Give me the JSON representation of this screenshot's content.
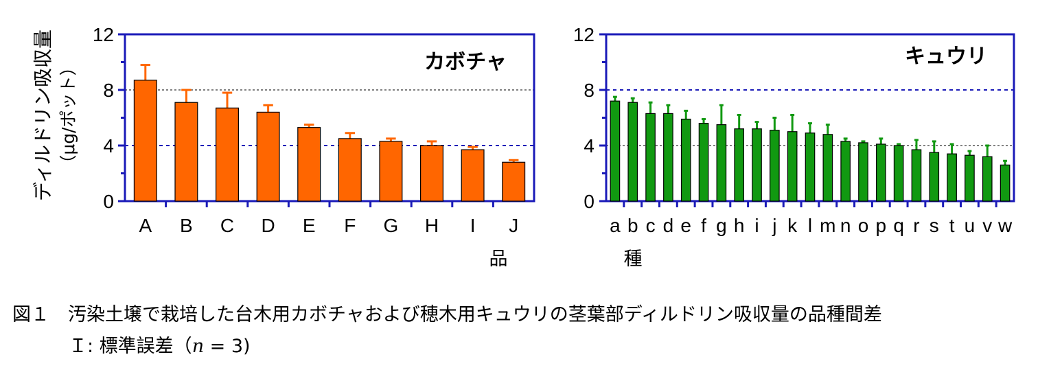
{
  "y_axis_label": "ディルドリン吸収量",
  "y_axis_unit": "（μg/ポット）",
  "x_axis_label_part1": "品",
  "x_axis_label_part2": "種",
  "caption": {
    "line1": "図１　汚染土壌で栽培した台木用カボチャおよび穂木用キュウリの茎葉部ディルドリン吸収量の品種間差",
    "line2_prefix": "Ｉ: 標準誤差（",
    "line2_n": "n",
    "line2_suffix": " = 3)"
  },
  "colors": {
    "axis": "#1a1ab8",
    "refline": "#1a1ab8",
    "pumpkin": "#ff6600",
    "cucumber": "#119911"
  },
  "chart_data": [
    {
      "type": "bar",
      "title": "カボチャ",
      "categories": [
        "A",
        "B",
        "C",
        "D",
        "E",
        "F",
        "G",
        "H",
        "I",
        "J"
      ],
      "values": [
        8.7,
        7.1,
        6.7,
        6.4,
        5.3,
        4.5,
        4.3,
        4.0,
        3.7,
        2.8
      ],
      "errors": [
        1.1,
        0.9,
        1.1,
        0.5,
        0.2,
        0.4,
        0.2,
        0.3,
        0.2,
        0.15
      ],
      "yticks": [
        0,
        4,
        8,
        12
      ],
      "ylim": [
        0,
        12
      ],
      "reference_lines": [
        4,
        8
      ],
      "grid": false
    },
    {
      "type": "bar",
      "title": "キュウリ",
      "categories": [
        "a",
        "b",
        "c",
        "d",
        "e",
        "f",
        "g",
        "h",
        "i",
        "j",
        "k",
        "l",
        "m",
        "n",
        "o",
        "p",
        "q",
        "r",
        "s",
        "t",
        "u",
        "v",
        "w"
      ],
      "values": [
        7.2,
        7.1,
        6.3,
        6.3,
        5.9,
        5.6,
        5.5,
        5.2,
        5.2,
        5.1,
        5.0,
        4.9,
        4.8,
        4.3,
        4.2,
        4.1,
        4.0,
        3.7,
        3.5,
        3.4,
        3.3,
        3.2,
        2.6
      ],
      "errors": [
        0.3,
        0.3,
        0.8,
        0.6,
        0.6,
        0.3,
        1.4,
        1.0,
        0.5,
        0.9,
        1.2,
        0.7,
        0.7,
        0.2,
        0.1,
        0.4,
        0.1,
        0.7,
        0.8,
        0.7,
        0.3,
        0.8,
        0.3
      ],
      "yticks": [
        0,
        4,
        8,
        12
      ],
      "ylim": [
        0,
        12
      ],
      "reference_lines": [
        4,
        8
      ],
      "grid": false
    }
  ]
}
